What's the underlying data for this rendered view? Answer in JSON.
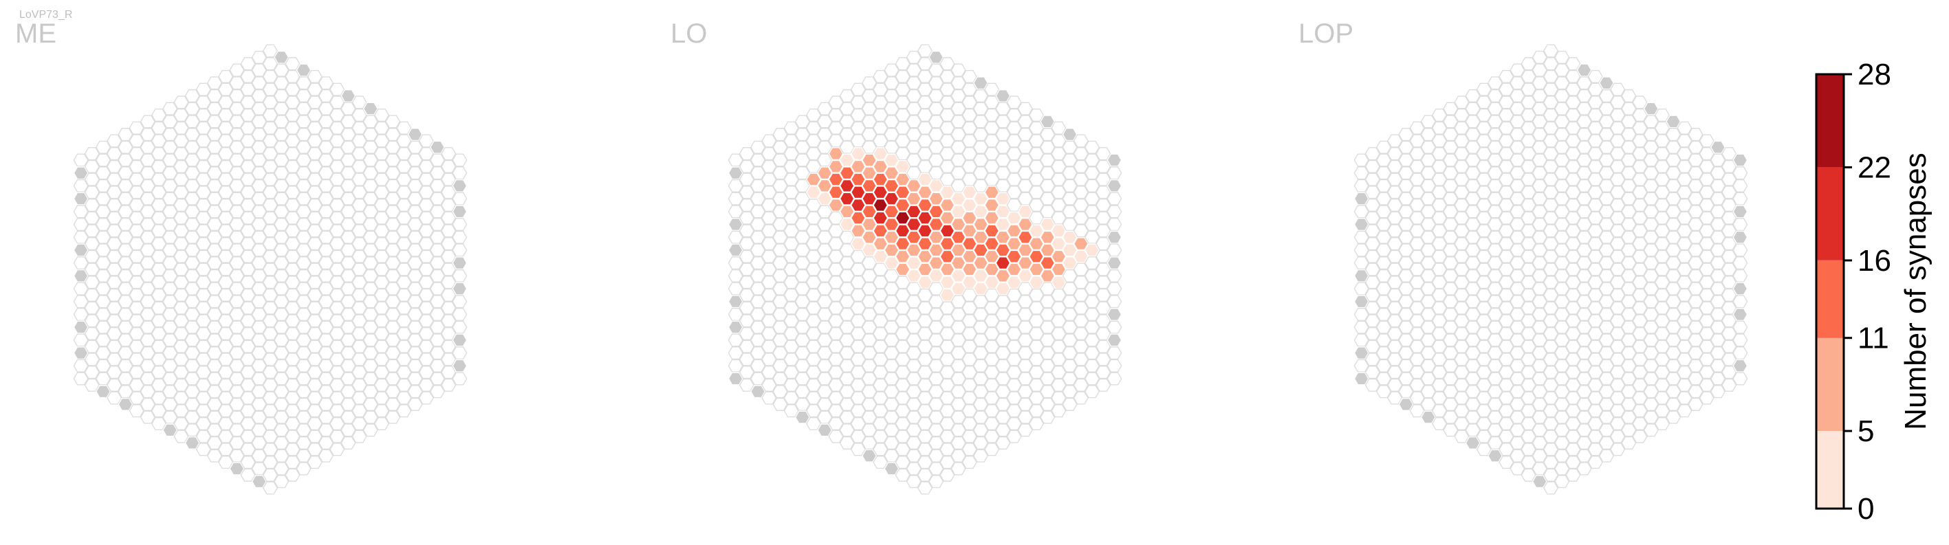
{
  "chart_data": {
    "type": "heatmap",
    "figure_label": "LoVP73_R",
    "panels": [
      {
        "title": "ME",
        "grid_radius": 17,
        "has_synapses": false,
        "innervated": []
      },
      {
        "title": "LO",
        "grid_radius": 17,
        "has_synapses": true,
        "innervated": [
          [
            -8,
            -5,
            7
          ],
          [
            -8,
            -4,
            9
          ],
          [
            -8,
            -3,
            14
          ],
          [
            -8,
            -2,
            12
          ],
          [
            -8,
            -1,
            6
          ],
          [
            -7,
            -5,
            4
          ],
          [
            -7,
            -4,
            12
          ],
          [
            -7,
            -3,
            19
          ],
          [
            -7,
            -2,
            17
          ],
          [
            -7,
            -1,
            9
          ],
          [
            -7,
            0,
            5
          ],
          [
            -6,
            -6,
            3
          ],
          [
            -6,
            -5,
            8
          ],
          [
            -6,
            -4,
            16
          ],
          [
            -6,
            -3,
            21
          ],
          [
            -6,
            -2,
            18
          ],
          [
            -6,
            -1,
            12
          ],
          [
            -6,
            0,
            8
          ],
          [
            -6,
            1,
            4
          ],
          [
            -5,
            -6,
            6
          ],
          [
            -5,
            -5,
            11
          ],
          [
            -5,
            -4,
            15
          ],
          [
            -5,
            -3,
            19
          ],
          [
            -5,
            -2,
            16
          ],
          [
            -5,
            -1,
            11
          ],
          [
            -5,
            0,
            7
          ],
          [
            -5,
            1,
            3
          ],
          [
            -4,
            -7,
            4
          ],
          [
            -4,
            -6,
            9
          ],
          [
            -4,
            -5,
            13
          ],
          [
            -4,
            -4,
            18
          ],
          [
            -4,
            -3,
            23
          ],
          [
            -4,
            -2,
            17
          ],
          [
            -4,
            -1,
            14
          ],
          [
            -4,
            0,
            9
          ],
          [
            -4,
            1,
            4
          ],
          [
            -3,
            -7,
            5
          ],
          [
            -3,
            -6,
            10
          ],
          [
            -3,
            -5,
            14
          ],
          [
            -3,
            -4,
            22
          ],
          [
            -3,
            -3,
            15
          ],
          [
            -3,
            -2,
            13
          ],
          [
            -3,
            -1,
            10
          ],
          [
            -3,
            0,
            6
          ],
          [
            -3,
            1,
            5
          ],
          [
            -2,
            -7,
            3
          ],
          [
            -2,
            -6,
            7
          ],
          [
            -2,
            -5,
            12
          ],
          [
            -2,
            -4,
            16
          ],
          [
            -2,
            -3,
            25
          ],
          [
            -2,
            -2,
            18
          ],
          [
            -2,
            -1,
            12
          ],
          [
            -2,
            0,
            7
          ],
          [
            -2,
            1,
            8
          ],
          [
            -1,
            -6,
            6
          ],
          [
            -1,
            -5,
            11
          ],
          [
            -1,
            -4,
            20
          ],
          [
            -1,
            -3,
            17
          ],
          [
            -1,
            -2,
            13
          ],
          [
            -1,
            -1,
            9
          ],
          [
            -1,
            0,
            5
          ],
          [
            -1,
            1,
            4
          ],
          [
            0,
            -7,
            4
          ],
          [
            0,
            -6,
            8
          ],
          [
            0,
            -5,
            14
          ],
          [
            0,
            -4,
            18
          ],
          [
            0,
            -3,
            21
          ],
          [
            0,
            -2,
            12
          ],
          [
            0,
            -1,
            10
          ],
          [
            0,
            0,
            7
          ],
          [
            0,
            1,
            3
          ],
          [
            1,
            -7,
            3
          ],
          [
            1,
            -6,
            9
          ],
          [
            1,
            -5,
            13
          ],
          [
            1,
            -4,
            16
          ],
          [
            1,
            -3,
            11
          ],
          [
            1,
            -2,
            9
          ],
          [
            1,
            -1,
            6
          ],
          [
            1,
            0,
            4
          ],
          [
            2,
            -7,
            4
          ],
          [
            2,
            -6,
            6
          ],
          [
            2,
            -5,
            10
          ],
          [
            2,
            -4,
            19
          ],
          [
            2,
            -3,
            15
          ],
          [
            2,
            -2,
            12
          ],
          [
            2,
            -1,
            7
          ],
          [
            2,
            0,
            5
          ],
          [
            2,
            1,
            3
          ],
          [
            3,
            -7,
            2
          ],
          [
            3,
            -6,
            5
          ],
          [
            3,
            -5,
            9
          ],
          [
            3,
            -4,
            13
          ],
          [
            3,
            -3,
            9
          ],
          [
            3,
            -2,
            7
          ],
          [
            3,
            -1,
            4
          ],
          [
            3,
            0,
            3
          ],
          [
            4,
            -8,
            3
          ],
          [
            4,
            -7,
            5
          ],
          [
            4,
            -6,
            8
          ],
          [
            4,
            -5,
            11
          ],
          [
            4,
            -4,
            15
          ],
          [
            4,
            -3,
            10
          ],
          [
            4,
            -2,
            6
          ],
          [
            4,
            -1,
            4
          ],
          [
            5,
            -8,
            2
          ],
          [
            5,
            -7,
            4
          ],
          [
            5,
            -6,
            7
          ],
          [
            5,
            -5,
            10
          ],
          [
            5,
            -4,
            16
          ],
          [
            5,
            -3,
            9
          ],
          [
            5,
            -2,
            5
          ],
          [
            5,
            -1,
            3
          ],
          [
            6,
            -9,
            8
          ],
          [
            6,
            -8,
            6
          ],
          [
            6,
            -7,
            9
          ],
          [
            6,
            -6,
            12
          ],
          [
            6,
            -5,
            15
          ],
          [
            6,
            -4,
            11
          ],
          [
            6,
            -3,
            7
          ],
          [
            6,
            -2,
            4
          ],
          [
            7,
            -9,
            4
          ],
          [
            7,
            -8,
            3
          ],
          [
            7,
            -7,
            5
          ],
          [
            7,
            -6,
            8
          ],
          [
            7,
            -5,
            14
          ],
          [
            7,
            -4,
            17
          ],
          [
            7,
            -3,
            10
          ],
          [
            7,
            -2,
            5
          ],
          [
            8,
            -8,
            2
          ],
          [
            8,
            -7,
            6
          ],
          [
            8,
            -6,
            9
          ],
          [
            8,
            -5,
            13
          ],
          [
            8,
            -4,
            8
          ],
          [
            8,
            -3,
            5
          ],
          [
            9,
            -9,
            3
          ],
          [
            9,
            -8,
            8
          ],
          [
            9,
            -7,
            13
          ],
          [
            9,
            -6,
            11
          ],
          [
            9,
            -5,
            7
          ],
          [
            9,
            -4,
            4
          ],
          [
            10,
            -8,
            5
          ],
          [
            10,
            -7,
            9
          ],
          [
            10,
            -6,
            12
          ],
          [
            10,
            -5,
            6
          ],
          [
            10,
            -4,
            3
          ],
          [
            11,
            -9,
            4
          ],
          [
            11,
            -8,
            7
          ],
          [
            11,
            -7,
            10
          ],
          [
            11,
            -6,
            15
          ],
          [
            11,
            -5,
            8
          ],
          [
            12,
            -9,
            3
          ],
          [
            12,
            -8,
            5
          ],
          [
            12,
            -7,
            9
          ],
          [
            12,
            -6,
            6
          ],
          [
            12,
            -5,
            4
          ],
          [
            13,
            -9,
            2
          ],
          [
            13,
            -8,
            4
          ],
          [
            13,
            -7,
            3
          ],
          [
            -9,
            -3,
            8
          ],
          [
            -9,
            -2,
            10
          ],
          [
            -9,
            -1,
            5
          ],
          [
            -10,
            -2,
            6
          ],
          [
            -10,
            -1,
            3
          ],
          [
            14,
            -9,
            7
          ],
          [
            14,
            -8,
            3
          ],
          [
            15,
            -9,
            2
          ]
        ]
      },
      {
        "title": "LOP",
        "grid_radius": 17,
        "has_synapses": false,
        "innervated": []
      }
    ],
    "colorbar": {
      "label": "Number of synapses",
      "ticks": [
        "0",
        "5",
        "11",
        "16",
        "22",
        "28"
      ],
      "range": [
        0,
        28
      ],
      "bins": [
        0,
        5,
        11,
        16,
        22,
        28
      ],
      "colors": [
        "#fee5d9",
        "#fcae91",
        "#fb6a4a",
        "#de2d26",
        "#a50f15"
      ]
    },
    "styles": {
      "empty_fill": "#ffffff",
      "empty_stroke": "#dddddd",
      "edge_fill": "#cccccc",
      "title_color": "#c8c8c8",
      "label_color": "#bdbdbd"
    }
  }
}
